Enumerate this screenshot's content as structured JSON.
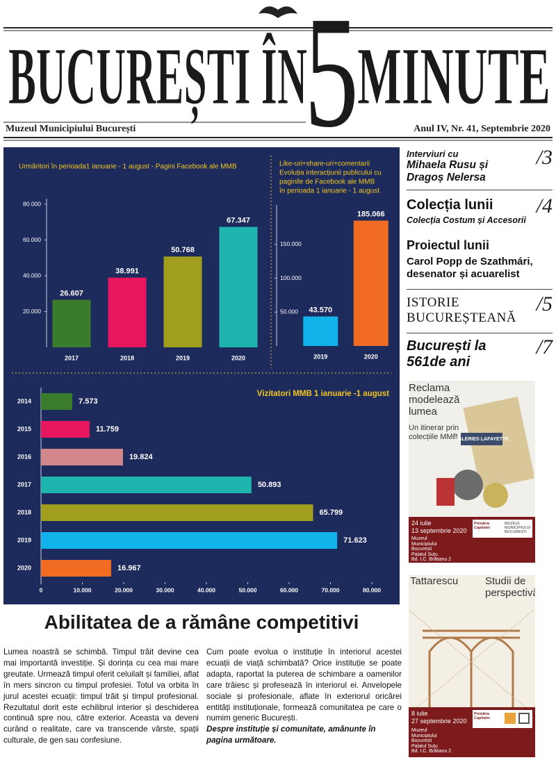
{
  "masthead": {
    "title_left": "BUCUREȘTI ÎN",
    "title_number": "5",
    "title_right": "MINUTE",
    "publisher": "Muzeul Municipiului București",
    "issue": "Anul IV, Nr. 41, Septembrie 2020"
  },
  "chart_data": [
    {
      "type": "bar",
      "title": "Urmăritori în perioada1 ianuarie - 1 august - Pagini Facebook ale MMB",
      "categories": [
        "2017",
        "2018",
        "2019",
        "2020"
      ],
      "values": [
        26607,
        38991,
        50768,
        67347
      ],
      "value_labels": [
        "26.607",
        "38.991",
        "50.768",
        "67.347"
      ],
      "colors": [
        "#3b7b2c",
        "#e8155f",
        "#a19e1d",
        "#1db5ad"
      ],
      "ylim": [
        0,
        80000
      ],
      "yticks": [
        {
          "value": 20000,
          "label": "20.000"
        },
        {
          "value": 40000,
          "label": "40.000"
        },
        {
          "value": 60000,
          "label": "60.000"
        },
        {
          "value": 80000,
          "label": "80.000"
        }
      ]
    },
    {
      "type": "bar",
      "title": [
        "Like-uri+share-uri+comentarii",
        "Evoluția interacțiunii publicului cu",
        "paginile de Facebook ale MMB",
        "în perioada 1 ianuarie - 1 august"
      ],
      "categories": [
        "2019",
        "2020"
      ],
      "values": [
        43570,
        185066
      ],
      "value_labels": [
        "43.570",
        "185.066"
      ],
      "colors": [
        "#12b3ea",
        "#f26b22"
      ],
      "ylim": [
        0,
        200000
      ],
      "yticks": [
        {
          "value": 50000,
          "label": "50.000"
        },
        {
          "value": 100000,
          "label": "100.000"
        },
        {
          "value": 150000,
          "label": "150.000"
        }
      ]
    },
    {
      "type": "hbar",
      "title": "Vizitatori MMB 1 ianuarie -1 august",
      "categories": [
        "2014",
        "2015",
        "2016",
        "2017",
        "2018",
        "2019",
        "2020"
      ],
      "values": [
        7573,
        11759,
        19824,
        50893,
        65799,
        71623,
        16967
      ],
      "value_labels": [
        "7.573",
        "11.759",
        "19.824",
        "50.893",
        "65.799",
        "71.623",
        "16.967"
      ],
      "colors": [
        "#3b7b2c",
        "#e8155f",
        "#d2878a",
        "#1db5ad",
        "#a19e1d",
        "#12b3ea",
        "#f26b22"
      ],
      "xlim": [
        0,
        80000
      ],
      "xticks": [
        0,
        {
          "value": 10000,
          "label": "10.000"
        },
        {
          "value": 20000,
          "label": "20.000"
        },
        {
          "value": 30000,
          "label": "30.000"
        },
        {
          "value": 40000,
          "label": "40.000"
        },
        {
          "value": 50000,
          "label": "50.000"
        },
        {
          "value": 60000,
          "label": "60.000"
        },
        {
          "value": 70000,
          "label": "70.000"
        },
        {
          "value": 80000,
          "label": "80.000"
        }
      ]
    }
  ],
  "sidebar": {
    "items": [
      {
        "kicker": "Interviuri cu",
        "headline": "Mihaela Rusu și Dragoș Nelersa",
        "page": "/3"
      },
      {
        "headline": "Colecția lunii",
        "subhead": "Colecția Costum și Accesorii",
        "page": "/4"
      },
      {
        "headline": "Proiectul lunii",
        "subhead": "Carol Popp de Szathmári, desenator și acuarelist"
      },
      {
        "headline": "ISTORIE BUCUREȘTEANĂ",
        "page": "/5"
      },
      {
        "headline": "București la 561de ani",
        "page": "/7"
      }
    ]
  },
  "posters": [
    {
      "title": "Reclama modelează lumea",
      "subtitle": "Un itinerar prin colecțiile MMB",
      "image_text": "GALERIES LAFAYETTE",
      "start": "24 iulie",
      "end": "13 septembrie 2020",
      "venue": [
        "Muzeul",
        "Municipiului",
        "București",
        "Palatul Suțu",
        "Bd. I.C. Brătianu 2"
      ],
      "logos": [
        "Primăria Capitalei",
        "MUZEUL MUNICIPIULUI BUCUREȘTI"
      ]
    },
    {
      "title": "Tattarescu",
      "subtitle": "Studii de perspectivă",
      "start": "8 iulie",
      "end": "27 septembrie 2020",
      "venue": [
        "Muzeul",
        "Municipiului",
        "București",
        "Palatul Suțu",
        "Bd. I.C. Brătianu 2"
      ],
      "logos": [
        "Primăria Capitalei"
      ]
    }
  ],
  "article": {
    "title": "Abilitatea de a rămâne competitivi",
    "paragraphs": [
      "Lumea noastră se schimbă. Timpul trăit devine cea mai importantă investiție. Și dorința cu cea mai mare greutate. Urmează timpul oferit celuilalt și familiei, aflat în mers sincron cu timpul profesiei. Totul va orbita în jurul acestei ecuații: timpul trăit și timpul profesional. Rezultatul dorit este echilibrul interior și deschiderea continuă spre nou, către exterior. Aceasta va deveni curând o realitate, care va transcende vârste, spații culturale, de gen sau confesiune.",
      "Cum poate evolua o instituție în interiorul acestei ecuații de viață schimbată? Orice instituție se poate adapta, raportat la puterea de schimbare a oamenilor care trăiesc și profesează în interiorul ei. Anvelopele sociale și profesionale, aflate în exteriorul oricărei entități instituționale, formează comunitatea pe care o numim generic București."
    ],
    "closing": "Despre instituție și comunitate, amănunte în pagina următoare."
  }
}
